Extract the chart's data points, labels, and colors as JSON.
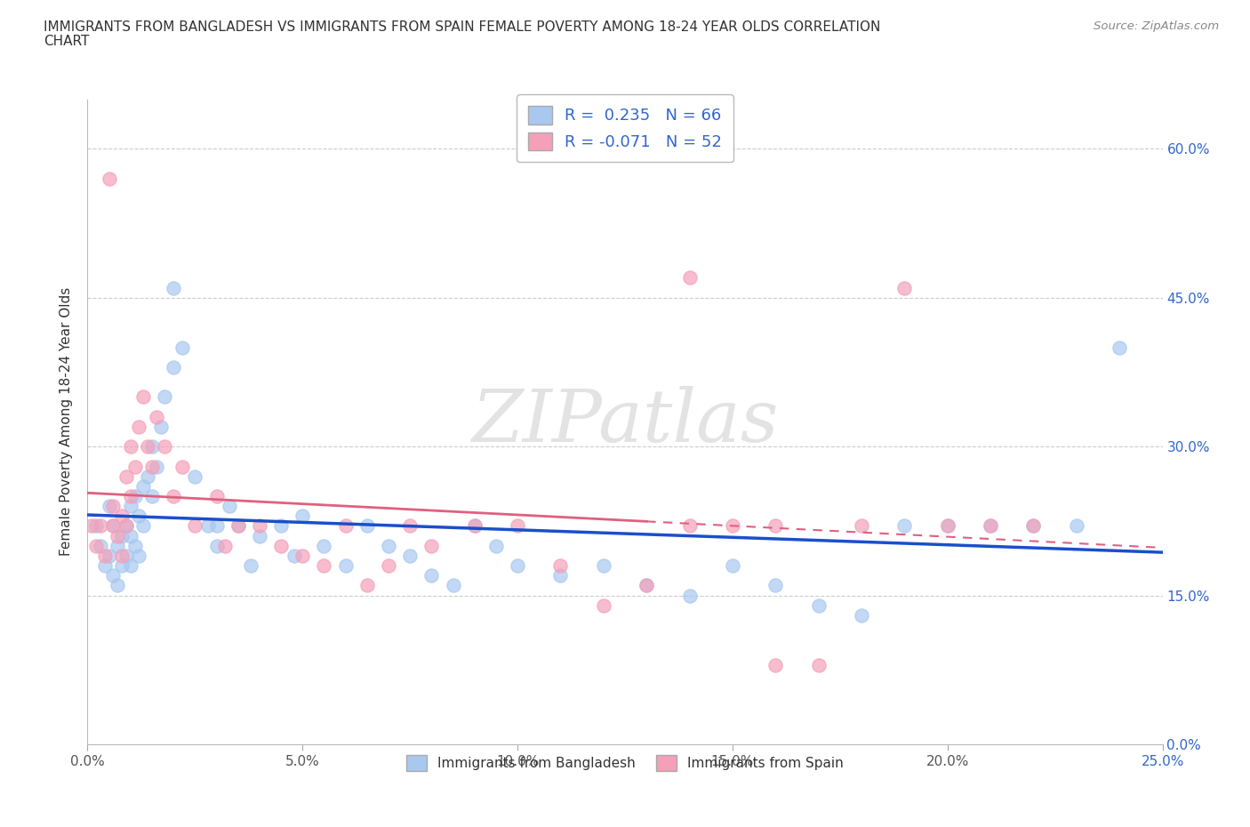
{
  "title_line1": "IMMIGRANTS FROM BANGLADESH VS IMMIGRANTS FROM SPAIN FEMALE POVERTY AMONG 18-24 YEAR OLDS CORRELATION",
  "title_line2": "CHART",
  "source": "Source: ZipAtlas.com",
  "ylabel": "Female Poverty Among 18-24 Year Olds",
  "xlim": [
    0.0,
    0.25
  ],
  "ylim": [
    0.0,
    0.65
  ],
  "r_bangladesh": 0.235,
  "n_bangladesh": 66,
  "r_spain": -0.071,
  "n_spain": 52,
  "color_bangladesh": "#a8c8f0",
  "color_spain": "#f4a0b8",
  "line_color_bangladesh": "#1a4fcc",
  "line_color_spain": "#e0607e",
  "watermark": "ZIPatlas",
  "legend_label_bangladesh": "Immigrants from Bangladesh",
  "legend_label_spain": "Immigrants from Spain",
  "bangladesh_x": [
    0.002,
    0.003,
    0.004,
    0.005,
    0.005,
    0.006,
    0.006,
    0.007,
    0.007,
    0.008,
    0.008,
    0.009,
    0.009,
    0.01,
    0.01,
    0.01,
    0.011,
    0.011,
    0.012,
    0.012,
    0.013,
    0.013,
    0.014,
    0.015,
    0.015,
    0.016,
    0.017,
    0.018,
    0.02,
    0.022,
    0.025,
    0.028,
    0.03,
    0.033,
    0.035,
    0.038,
    0.04,
    0.045,
    0.048,
    0.05,
    0.055,
    0.06,
    0.065,
    0.07,
    0.075,
    0.08,
    0.085,
    0.09,
    0.095,
    0.1,
    0.11,
    0.12,
    0.13,
    0.14,
    0.15,
    0.16,
    0.17,
    0.18,
    0.19,
    0.2,
    0.21,
    0.22,
    0.23,
    0.24,
    0.02,
    0.03
  ],
  "bangladesh_y": [
    0.22,
    0.2,
    0.18,
    0.24,
    0.19,
    0.22,
    0.17,
    0.2,
    0.16,
    0.21,
    0.18,
    0.22,
    0.19,
    0.24,
    0.21,
    0.18,
    0.25,
    0.2,
    0.23,
    0.19,
    0.26,
    0.22,
    0.27,
    0.25,
    0.3,
    0.28,
    0.32,
    0.35,
    0.38,
    0.4,
    0.27,
    0.22,
    0.2,
    0.24,
    0.22,
    0.18,
    0.21,
    0.22,
    0.19,
    0.23,
    0.2,
    0.18,
    0.22,
    0.2,
    0.19,
    0.17,
    0.16,
    0.22,
    0.2,
    0.18,
    0.17,
    0.18,
    0.16,
    0.15,
    0.18,
    0.16,
    0.14,
    0.13,
    0.22,
    0.22,
    0.22,
    0.22,
    0.22,
    0.4,
    0.46,
    0.22
  ],
  "spain_x": [
    0.001,
    0.002,
    0.003,
    0.004,
    0.005,
    0.006,
    0.006,
    0.007,
    0.008,
    0.008,
    0.009,
    0.009,
    0.01,
    0.01,
    0.011,
    0.012,
    0.013,
    0.014,
    0.015,
    0.016,
    0.018,
    0.02,
    0.022,
    0.025,
    0.03,
    0.032,
    0.035,
    0.04,
    0.045,
    0.05,
    0.055,
    0.06,
    0.065,
    0.07,
    0.075,
    0.08,
    0.09,
    0.1,
    0.11,
    0.12,
    0.13,
    0.14,
    0.15,
    0.16,
    0.17,
    0.18,
    0.19,
    0.2,
    0.21,
    0.22,
    0.14,
    0.16
  ],
  "spain_y": [
    0.22,
    0.2,
    0.22,
    0.19,
    0.57,
    0.22,
    0.24,
    0.21,
    0.23,
    0.19,
    0.27,
    0.22,
    0.3,
    0.25,
    0.28,
    0.32,
    0.35,
    0.3,
    0.28,
    0.33,
    0.3,
    0.25,
    0.28,
    0.22,
    0.25,
    0.2,
    0.22,
    0.22,
    0.2,
    0.19,
    0.18,
    0.22,
    0.16,
    0.18,
    0.22,
    0.2,
    0.22,
    0.22,
    0.18,
    0.14,
    0.16,
    0.47,
    0.22,
    0.22,
    0.08,
    0.22,
    0.46,
    0.22,
    0.22,
    0.22,
    0.22,
    0.08
  ],
  "xtick_vals": [
    0.0,
    0.05,
    0.1,
    0.15,
    0.2,
    0.25
  ],
  "xtick_labels": [
    "0.0%",
    "5.0%",
    "10.0%",
    "15.0%",
    "20.0%",
    "25.0%"
  ],
  "ytick_vals": [
    0.0,
    0.15,
    0.3,
    0.45,
    0.6
  ],
  "ytick_labels": [
    "0.0%",
    "15.0%",
    "30.0%",
    "45.0%",
    "60.0%"
  ]
}
